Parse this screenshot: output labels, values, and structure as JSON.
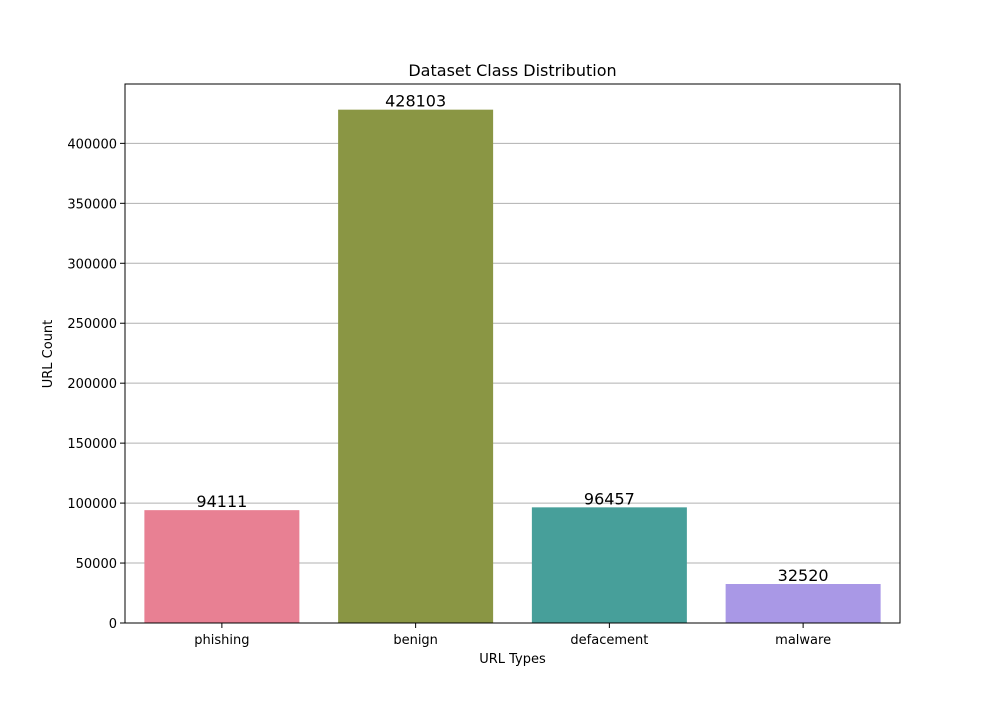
{
  "chart_data": {
    "type": "bar",
    "title": "Dataset Class Distribution",
    "xlabel": "URL Types",
    "ylabel": "URL Count",
    "categories": [
      "phishing",
      "benign",
      "defacement",
      "malware"
    ],
    "values": [
      94111,
      428103,
      96457,
      32520
    ],
    "data_labels": [
      "94111",
      "428103",
      "96457",
      "32520"
    ],
    "colors": [
      "#e88093",
      "#8a9644",
      "#479f9a",
      "#a998e6"
    ],
    "ylim": [
      0,
      449508
    ],
    "yticks": [
      0,
      50000,
      100000,
      150000,
      200000,
      250000,
      300000,
      350000,
      400000
    ],
    "ytick_labels": [
      "0",
      "50000",
      "100000",
      "150000",
      "200000",
      "250000",
      "300000",
      "350000",
      "400000"
    ],
    "grid": "horizontal",
    "legend": "none"
  }
}
